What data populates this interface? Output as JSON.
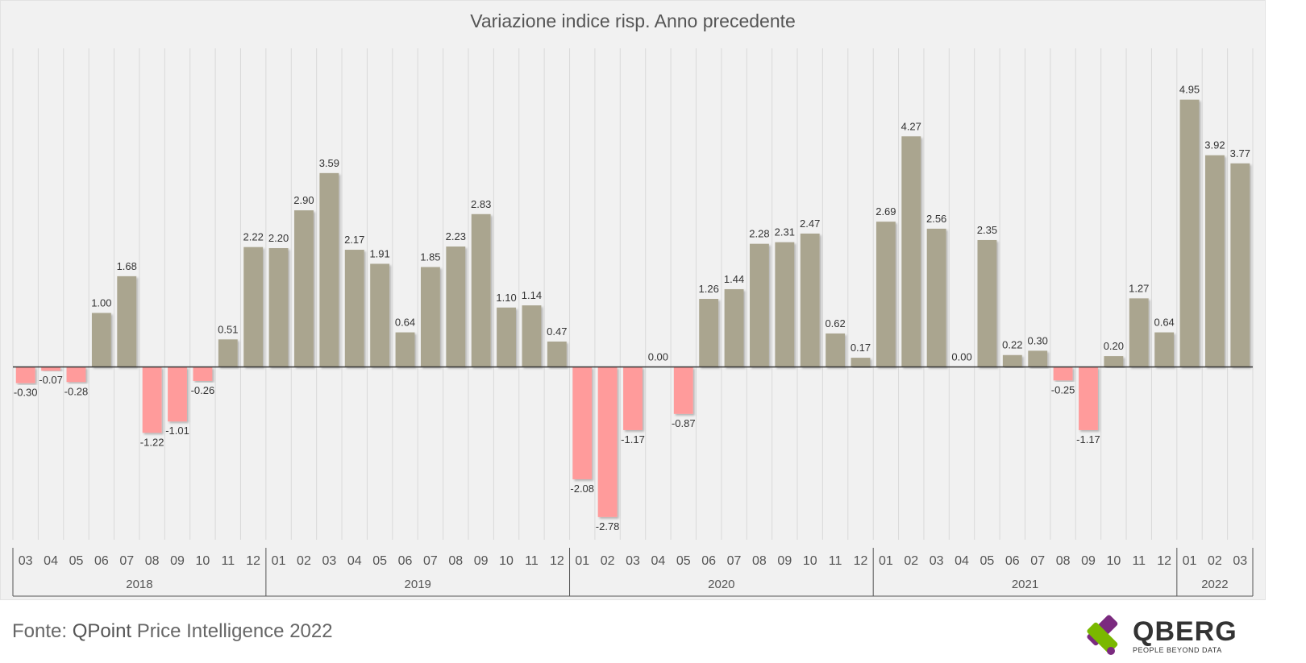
{
  "chart_data": {
    "type": "bar",
    "title": "Variazione indice risp. Anno precedente",
    "xlabel": "",
    "ylabel": "",
    "ylim": [
      -3.2,
      5.9
    ],
    "grid": "vertical",
    "categories": [
      "03",
      "04",
      "05",
      "06",
      "07",
      "08",
      "09",
      "10",
      "11",
      "12",
      "01",
      "02",
      "03",
      "04",
      "05",
      "06",
      "07",
      "08",
      "09",
      "10",
      "11",
      "12",
      "01",
      "02",
      "03",
      "04",
      "05",
      "06",
      "07",
      "08",
      "09",
      "10",
      "11",
      "12",
      "01",
      "02",
      "03",
      "04",
      "05",
      "06",
      "07",
      "08",
      "09",
      "10",
      "11",
      "12",
      "01",
      "02",
      "03"
    ],
    "values": [
      -0.3,
      -0.07,
      -0.28,
      1.0,
      1.68,
      -1.22,
      -1.01,
      -0.26,
      0.51,
      2.22,
      2.2,
      2.9,
      3.59,
      2.17,
      1.91,
      0.64,
      1.85,
      2.23,
      2.83,
      1.1,
      1.14,
      0.47,
      -2.08,
      -2.78,
      -1.17,
      0.0,
      -0.87,
      1.26,
      1.44,
      2.28,
      2.31,
      2.47,
      0.62,
      0.17,
      2.69,
      4.27,
      2.56,
      0.0,
      2.35,
      0.22,
      0.3,
      -0.25,
      -1.17,
      0.2,
      1.27,
      0.64,
      4.95,
      3.92,
      3.77
    ],
    "labels": [
      "-0.30",
      "-0.07",
      "-0.28",
      "1.00",
      "1.68",
      "-1.22",
      "-1.01",
      "-0.26",
      "0.51",
      "2.22",
      "2.20",
      "2.90",
      "3.59",
      "2.17",
      "1.91",
      "0.64",
      "1.85",
      "2.23",
      "2.83",
      "1.10",
      "1.14",
      "0.47",
      "-2.08",
      "-2.78",
      "-1.17",
      "0.00",
      "-0.87",
      "1.26",
      "1.44",
      "2.28",
      "2.31",
      "2.47",
      "0.62",
      "0.17",
      "2.69",
      "4.27",
      "2.56",
      "0.00",
      "2.35",
      "0.22",
      "0.30",
      "-0.25",
      "-1.17",
      "0.20",
      "1.27",
      "0.64",
      "4.95",
      "3.92",
      "3.77"
    ],
    "years": [
      {
        "label": "2018",
        "count": 10
      },
      {
        "label": "2019",
        "count": 12
      },
      {
        "label": "2020",
        "count": 12
      },
      {
        "label": "2021",
        "count": 12
      },
      {
        "label": "2022",
        "count": 3
      }
    ],
    "colors": {
      "positive": "#aaa58f",
      "negative": "#ff9b9b",
      "background": "#f1f1f1",
      "gridline": "#d9d9d9",
      "zero_line": "#333333"
    }
  },
  "footer": {
    "source_prefix": "Fonte: ",
    "source_brand": "QPoint",
    "source_rest": " Price Intelligence 2022"
  },
  "logo": {
    "name": "QBERG",
    "tagline": "PEOPLE BEYOND DATA",
    "colors": {
      "purple": "#7b2a7f",
      "green": "#7ab800"
    }
  }
}
